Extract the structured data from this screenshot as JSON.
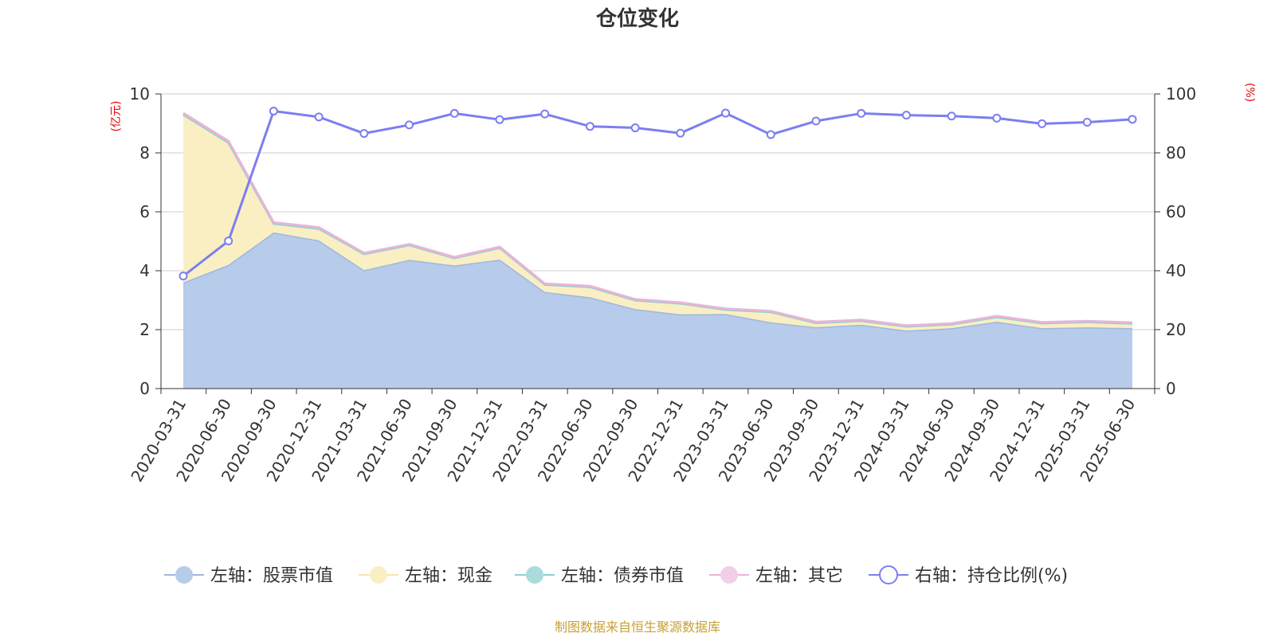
{
  "chart_data": {
    "type": "area",
    "title": "仓位变化",
    "left_axis_unit": "(亿元)",
    "right_axis_unit": "(%)",
    "ylim_left": [
      0,
      10
    ],
    "yticks_left": [
      "0",
      "2",
      "4",
      "6",
      "8",
      "10"
    ],
    "ylim_right": [
      0,
      100
    ],
    "yticks_right": [
      "0",
      "20",
      "40",
      "60",
      "80",
      "100"
    ],
    "grid": true,
    "legend_position": "bottom",
    "categories": [
      "2020-03-31",
      "2020-06-30",
      "2020-09-30",
      "2020-12-31",
      "2021-03-31",
      "2021-06-30",
      "2021-09-30",
      "2021-12-31",
      "2022-03-31",
      "2022-06-30",
      "2022-09-30",
      "2022-12-31",
      "2023-03-31",
      "2023-06-30",
      "2023-09-30",
      "2023-12-31",
      "2024-03-31",
      "2024-06-30",
      "2024-09-30",
      "2024-12-31",
      "2025-03-31",
      "2025-06-30"
    ],
    "series": [
      {
        "name": "左轴：股票市值",
        "axis": "left",
        "kind": "stack",
        "color": "#9db8e0",
        "fill": "#b7cbea",
        "values": [
          3.6,
          4.2,
          5.3,
          5.03,
          4.02,
          4.37,
          4.18,
          4.38,
          3.28,
          3.1,
          2.7,
          2.52,
          2.53,
          2.25,
          2.08,
          2.17,
          1.97,
          2.05,
          2.27,
          2.05,
          2.08,
          2.05
        ]
      },
      {
        "name": "左轴：现金",
        "axis": "left",
        "kind": "stack",
        "color": "#f7e8a8",
        "fill": "#faefc2",
        "values": [
          5.7,
          4.15,
          0.3,
          0.4,
          0.55,
          0.5,
          0.25,
          0.4,
          0.25,
          0.35,
          0.3,
          0.37,
          0.15,
          0.35,
          0.15,
          0.13,
          0.14,
          0.13,
          0.16,
          0.17,
          0.18,
          0.16
        ]
      },
      {
        "name": "左轴：债券市值",
        "axis": "left",
        "kind": "stack",
        "color": "#8fd0d0",
        "fill": "#a9dcdc",
        "values": [
          0,
          0,
          0,
          0,
          0,
          0,
          0,
          0,
          0,
          0,
          0,
          0,
          0,
          0,
          0,
          0,
          0,
          0,
          0,
          0,
          0,
          0
        ]
      },
      {
        "name": "左轴：其它",
        "axis": "left",
        "kind": "stack",
        "color": "#e8b4d8",
        "fill": "#f1cfe6",
        "values": [
          0.05,
          0.05,
          0.04,
          0.04,
          0.03,
          0.03,
          0.03,
          0.03,
          0.03,
          0.03,
          0.03,
          0.03,
          0.03,
          0.03,
          0.03,
          0.03,
          0.03,
          0.03,
          0.03,
          0.03,
          0.03,
          0.03
        ]
      },
      {
        "name": "右轴：持仓比例(%)",
        "axis": "right",
        "kind": "line",
        "color": "#7b7ff0",
        "values": [
          38.2,
          50.1,
          94.2,
          92.2,
          86.6,
          89.5,
          93.4,
          91.3,
          93.2,
          89.0,
          88.5,
          86.7,
          93.5,
          86.2,
          90.8,
          93.4,
          92.8,
          92.5,
          91.8,
          89.9,
          90.4,
          91.4
        ]
      }
    ]
  },
  "footer": "制图数据来自恒生聚源数据库"
}
